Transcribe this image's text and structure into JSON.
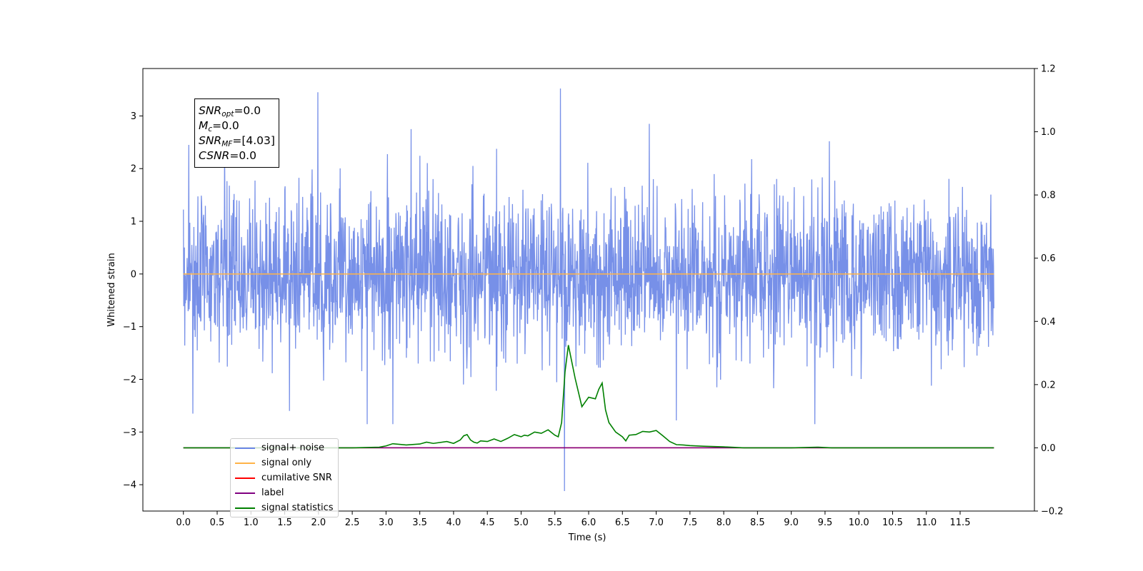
{
  "chart_data": {
    "type": "line",
    "title": "",
    "xlabel": "Time (s)",
    "ylabel": "Whitened strain",
    "xlim": [
      -0.6,
      12.6
    ],
    "ylim": [
      -4.5,
      3.9
    ],
    "y2lim": [
      -0.2,
      1.2
    ],
    "xticks": [
      "0.0",
      "0.5",
      "1.0",
      "1.5",
      "2.0",
      "2.5",
      "3.0",
      "3.5",
      "4.0",
      "4.5",
      "5.0",
      "5.5",
      "6.0",
      "6.5",
      "7.0",
      "7.5",
      "8.0",
      "8.5",
      "9.0",
      "9.5",
      "10.0",
      "10.5",
      "11.0",
      "11.5"
    ],
    "yticks": [
      "3",
      "2",
      "1",
      "0",
      "−1",
      "−2",
      "−3",
      "−4"
    ],
    "y2ticks": [
      "1.2",
      "1.0",
      "0.8",
      "0.6",
      "0.4",
      "0.2",
      "0.0",
      "−0.2"
    ],
    "grid": false,
    "legend_position": "lower-left",
    "annotation": {
      "snr_opt": {
        "sym": "SNR",
        "sub": "opt",
        "val": "=0.0"
      },
      "mc": {
        "sym": "M",
        "sub": "c",
        "val": "=0.0"
      },
      "snr_mf": {
        "sym": "SNR",
        "sub": "MF",
        "val": "=[4.03]"
      },
      "csnr": {
        "sym": "CSNR",
        "sub": "",
        "val": "=0.0"
      }
    },
    "series": [
      {
        "name": "signal+ noise",
        "color": "#6b87e6",
        "axis": "left",
        "kind": "noise",
        "x_range": [
          0.0,
          12.0
        ],
        "std": 0.75,
        "spikes": [
          [
            0.08,
            2.45
          ],
          [
            0.14,
            -2.65
          ],
          [
            1.99,
            3.45
          ],
          [
            5.58,
            3.52
          ],
          [
            5.64,
            -4.12
          ],
          [
            2.72,
            -2.85
          ],
          [
            3.1,
            -2.85
          ],
          [
            7.3,
            -2.78
          ],
          [
            9.35,
            -2.85
          ],
          [
            6.9,
            2.85
          ],
          [
            3.37,
            2.75
          ]
        ]
      },
      {
        "name": "signal only",
        "color": "#ffb347",
        "axis": "left",
        "kind": "flat",
        "x": [
          0.0,
          12.0
        ],
        "values": [
          0.0,
          0.0
        ]
      },
      {
        "name": "cumilative SNR",
        "color": "#ff0000",
        "axis": "right",
        "kind": "flat",
        "x": [
          0.0,
          12.0
        ],
        "values": [
          0.0,
          0.0
        ]
      },
      {
        "name": "label",
        "color": "#800080",
        "axis": "right",
        "kind": "flat",
        "x": [
          0.0,
          12.0
        ],
        "values": [
          0.0,
          0.0
        ]
      },
      {
        "name": "signal statistics",
        "color": "#008000",
        "axis": "right",
        "kind": "line",
        "x": [
          0.0,
          2.0,
          2.5,
          2.9,
          3.0,
          3.1,
          3.3,
          3.5,
          3.6,
          3.7,
          3.9,
          4.0,
          4.1,
          4.15,
          4.2,
          4.25,
          4.3,
          4.35,
          4.4,
          4.5,
          4.6,
          4.7,
          4.8,
          4.9,
          5.0,
          5.05,
          5.1,
          5.2,
          5.3,
          5.4,
          5.5,
          5.55,
          5.6,
          5.65,
          5.7,
          5.8,
          5.9,
          6.0,
          6.1,
          6.15,
          6.2,
          6.25,
          6.3,
          6.4,
          6.5,
          6.55,
          6.6,
          6.7,
          6.8,
          6.9,
          7.0,
          7.1,
          7.2,
          7.3,
          7.4,
          7.5,
          7.7,
          8.0,
          8.3,
          9.0,
          9.4,
          9.6,
          10.0,
          12.0
        ],
        "values": [
          0.0,
          0.0,
          0.0,
          0.002,
          0.006,
          0.013,
          0.009,
          0.012,
          0.018,
          0.014,
          0.02,
          0.014,
          0.025,
          0.038,
          0.042,
          0.025,
          0.018,
          0.015,
          0.022,
          0.02,
          0.028,
          0.02,
          0.03,
          0.042,
          0.035,
          0.04,
          0.038,
          0.05,
          0.046,
          0.057,
          0.04,
          0.035,
          0.08,
          0.24,
          0.325,
          0.22,
          0.13,
          0.16,
          0.155,
          0.185,
          0.205,
          0.12,
          0.08,
          0.05,
          0.035,
          0.022,
          0.04,
          0.042,
          0.052,
          0.05,
          0.055,
          0.038,
          0.02,
          0.01,
          0.009,
          0.007,
          0.005,
          0.003,
          0.0,
          0.0,
          0.002,
          0.0,
          0.0,
          0.0
        ]
      }
    ]
  }
}
